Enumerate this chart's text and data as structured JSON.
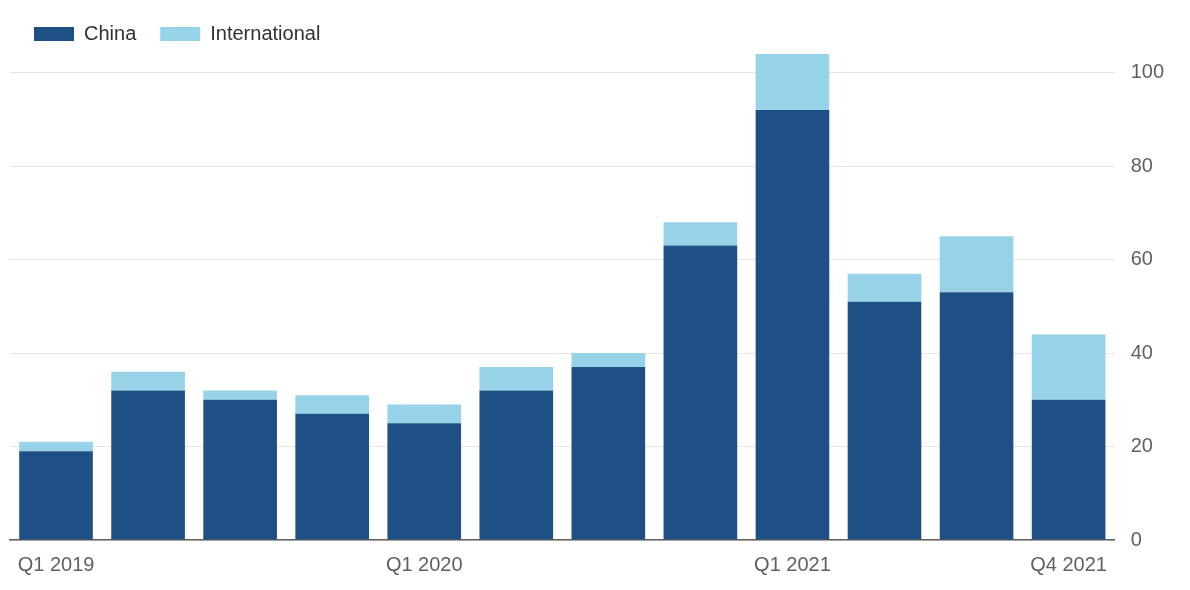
{
  "chart_data": {
    "type": "bar",
    "stacked": true,
    "categories": [
      "Q1 2019",
      null,
      null,
      null,
      "Q1 2020",
      null,
      null,
      null,
      "Q1 2021",
      null,
      null,
      "Q4 2021"
    ],
    "series": [
      {
        "name": "China",
        "color": "#1f5085",
        "values": [
          19,
          32,
          30,
          27,
          25,
          32,
          37,
          63,
          92,
          51,
          53,
          30
        ]
      },
      {
        "name": "International",
        "color": "#96d3e8",
        "values": [
          2,
          4,
          2,
          4,
          4,
          5,
          3,
          5,
          12,
          6,
          12,
          14
        ]
      }
    ],
    "ylim": [
      0,
      104
    ],
    "yticks": [
      0,
      20,
      40,
      60,
      80,
      100
    ],
    "grid": "y",
    "legend": "top left"
  }
}
